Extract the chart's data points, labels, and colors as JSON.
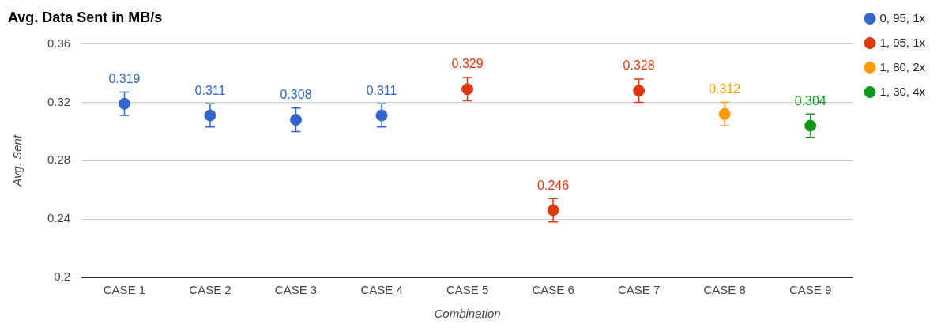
{
  "chart_data": {
    "type": "scatter",
    "title": "Avg. Data Sent in MB/s",
    "xlabel": "Combination",
    "ylabel": "Avg. Sent",
    "categories": [
      "CASE 1",
      "CASE 2",
      "CASE 3",
      "CASE 4",
      "CASE 5",
      "CASE 6",
      "CASE 7",
      "CASE 8",
      "CASE 9"
    ],
    "series": [
      {
        "name": "0, 95, 1x",
        "color": "#3366cc",
        "values": [
          0.319,
          0.311,
          0.308,
          0.311,
          null,
          null,
          null,
          null,
          null
        ],
        "errors": [
          0.008,
          0.008,
          0.008,
          0.008,
          null,
          null,
          null,
          null,
          null
        ]
      },
      {
        "name": "1, 95, 1x",
        "color": "#dc3912",
        "values": [
          null,
          null,
          null,
          null,
          0.329,
          0.246,
          0.328,
          null,
          null
        ],
        "errors": [
          null,
          null,
          null,
          null,
          0.008,
          0.008,
          0.008,
          null,
          null
        ]
      },
      {
        "name": "1, 80, 2x",
        "color": "#ff9900",
        "values": [
          null,
          null,
          null,
          null,
          null,
          null,
          null,
          0.312,
          null
        ],
        "errors": [
          null,
          null,
          null,
          null,
          null,
          null,
          null,
          0.008,
          null
        ]
      },
      {
        "name": "1, 30, 4x",
        "color": "#109618",
        "values": [
          null,
          null,
          null,
          null,
          null,
          null,
          null,
          null,
          0.304
        ],
        "errors": [
          null,
          null,
          null,
          null,
          null,
          null,
          null,
          null,
          0.008
        ]
      }
    ],
    "ylim": [
      0.2,
      0.36
    ],
    "yticks": [
      0.2,
      0.24,
      0.28,
      0.32,
      0.36
    ],
    "grid": "y",
    "legend": "right",
    "marker": "circle",
    "data_labels": true
  }
}
